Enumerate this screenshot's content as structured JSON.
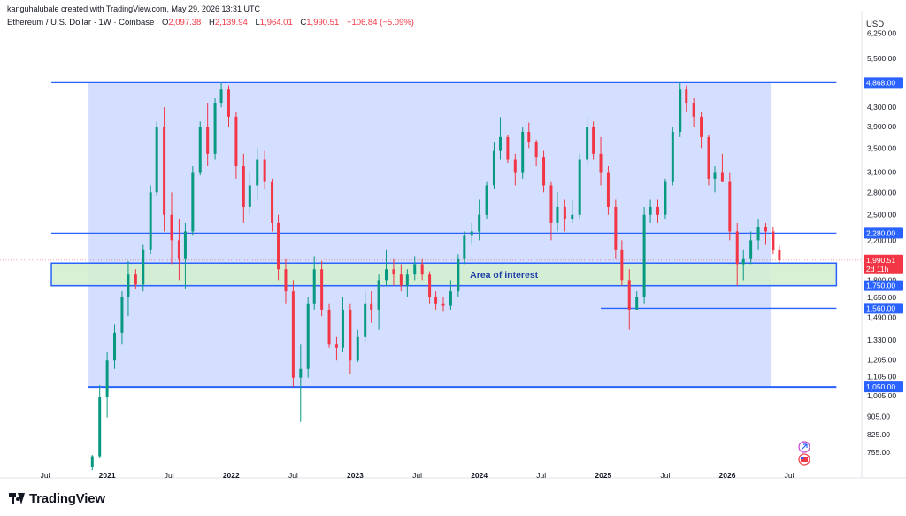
{
  "header": {
    "author_line": "kanguhalubale created with TradingView.com, May 29, 2026 13:31 UTC",
    "symbol": "Ethereum / U.S. Dollar · 1W · Coinbase",
    "open_label": "O",
    "open": "2,097.38",
    "high_label": "H",
    "high": "2,139.94",
    "low_label": "L",
    "low": "1,964.01",
    "close_label": "C",
    "close": "1,990.51",
    "change": "−106.84 (−5.09%)",
    "currency": "USD"
  },
  "footer": {
    "brand": "TradingView"
  },
  "colors": {
    "up": "#089981",
    "down": "#f23645",
    "level_line": "#2962ff",
    "range_fill": "#cdd8ff",
    "interest_fill": "#d4f0d0",
    "label_bg": "#2962ff"
  },
  "chart_data": {
    "type": "candlestick",
    "scale": "log",
    "interval": "1W",
    "ylim": [
      700,
      7000
    ],
    "y_ticks": [
      {
        "v": 6250,
        "t": "6,250.00"
      },
      {
        "v": 5500,
        "t": "5,500.00"
      },
      {
        "v": 4300,
        "t": "4,300.00"
      },
      {
        "v": 3900,
        "t": "3,900.00"
      },
      {
        "v": 3500,
        "t": "3,500.00"
      },
      {
        "v": 3100,
        "t": "3,100.00"
      },
      {
        "v": 2800,
        "t": "2,800.00"
      },
      {
        "v": 2500,
        "t": "2,500.00"
      },
      {
        "v": 2200,
        "t": "2,200.00"
      },
      {
        "v": 1800,
        "t": "1,800.00"
      },
      {
        "v": 1650,
        "t": "1,650.00"
      },
      {
        "v": 1490,
        "t": "1,490.00"
      },
      {
        "v": 1330,
        "t": "1,330.00"
      },
      {
        "v": 1205,
        "t": "1,205.00"
      },
      {
        "v": 1105,
        "t": "1,105.00"
      },
      {
        "v": 1005,
        "t": "1,005.00"
      },
      {
        "v": 905,
        "t": "905.00"
      },
      {
        "v": 825,
        "t": "825.00"
      },
      {
        "v": 755,
        "t": "755.00"
      }
    ],
    "x_ticks": [
      {
        "t": 2020.5,
        "label": "Jul",
        "bold": false
      },
      {
        "t": 2021.0,
        "label": "2021",
        "bold": true
      },
      {
        "t": 2021.5,
        "label": "Jul",
        "bold": false
      },
      {
        "t": 2022.0,
        "label": "2022",
        "bold": true
      },
      {
        "t": 2022.5,
        "label": "Jul",
        "bold": false
      },
      {
        "t": 2023.0,
        "label": "2023",
        "bold": true
      },
      {
        "t": 2023.5,
        "label": "Jul",
        "bold": false
      },
      {
        "t": 2024.0,
        "label": "2024",
        "bold": true
      },
      {
        "t": 2024.5,
        "label": "Jul",
        "bold": false
      },
      {
        "t": 2025.0,
        "label": "2025",
        "bold": true
      },
      {
        "t": 2025.5,
        "label": "Jul",
        "bold": false
      },
      {
        "t": 2026.0,
        "label": "2026",
        "bold": true
      },
      {
        "t": 2026.5,
        "label": "Jul",
        "bold": false
      }
    ],
    "levels": [
      {
        "price": 4868,
        "label": "4,868.00",
        "t_start": 2020.55,
        "t_end": 2026.88
      },
      {
        "price": 2280,
        "label": "2,280.00",
        "t_start": 2020.55,
        "t_end": 2026.88
      },
      {
        "price": 1750,
        "label": "1,750.00",
        "t_start": 2020.55,
        "t_end": 2026.88
      },
      {
        "price": 1560,
        "label": "1,560.00",
        "t_start": 2024.98,
        "t_end": 2026.88
      },
      {
        "price": 1050,
        "label": "1,050.00",
        "t_start": 2020.85,
        "t_end": 2026.88
      }
    ],
    "current_price": {
      "price": 1990.51,
      "label": "1,990.51",
      "countdown": "2d 11h"
    },
    "range_box": {
      "t_start": 2020.85,
      "t_end": 2026.35,
      "low": 1050,
      "high": 4868
    },
    "interest_zone": {
      "t_start": 2020.55,
      "t_end": 2026.88,
      "low": 1750,
      "high": 1960,
      "label": "Area of interest"
    },
    "candles": [
      {
        "t": 2020.88,
        "o": 700,
        "h": 745,
        "l": 690,
        "c": 740
      },
      {
        "t": 2020.94,
        "o": 740,
        "h": 1060,
        "l": 735,
        "c": 1000
      },
      {
        "t": 2021.0,
        "o": 1000,
        "h": 1250,
        "l": 900,
        "c": 1200
      },
      {
        "t": 2021.06,
        "o": 1200,
        "h": 1440,
        "l": 1150,
        "c": 1380
      },
      {
        "t": 2021.12,
        "o": 1380,
        "h": 1700,
        "l": 1300,
        "c": 1650
      },
      {
        "t": 2021.17,
        "o": 1650,
        "h": 1980,
        "l": 1500,
        "c": 1850
      },
      {
        "t": 2021.23,
        "o": 1850,
        "h": 1900,
        "l": 1720,
        "c": 1760
      },
      {
        "t": 2021.29,
        "o": 1760,
        "h": 2150,
        "l": 1700,
        "c": 2100
      },
      {
        "t": 2021.35,
        "o": 2100,
        "h": 2900,
        "l": 2050,
        "c": 2800
      },
      {
        "t": 2021.4,
        "o": 2800,
        "h": 4000,
        "l": 2750,
        "c": 3900
      },
      {
        "t": 2021.46,
        "o": 3900,
        "h": 4300,
        "l": 2300,
        "c": 2500
      },
      {
        "t": 2021.52,
        "o": 2500,
        "h": 2800,
        "l": 1950,
        "c": 2200
      },
      {
        "t": 2021.58,
        "o": 2200,
        "h": 2450,
        "l": 1800,
        "c": 2000
      },
      {
        "t": 2021.63,
        "o": 2000,
        "h": 2400,
        "l": 1720,
        "c": 2300
      },
      {
        "t": 2021.69,
        "o": 2300,
        "h": 3200,
        "l": 2250,
        "c": 3100
      },
      {
        "t": 2021.75,
        "o": 3100,
        "h": 4000,
        "l": 3050,
        "c": 3900
      },
      {
        "t": 2021.81,
        "o": 3900,
        "h": 4400,
        "l": 3200,
        "c": 3400
      },
      {
        "t": 2021.87,
        "o": 3400,
        "h": 4500,
        "l": 3300,
        "c": 4400
      },
      {
        "t": 2021.92,
        "o": 4400,
        "h": 4870,
        "l": 4300,
        "c": 4700
      },
      {
        "t": 2021.98,
        "o": 4700,
        "h": 4800,
        "l": 3900,
        "c": 4100
      },
      {
        "t": 2022.04,
        "o": 4100,
        "h": 4200,
        "l": 3000,
        "c": 3200
      },
      {
        "t": 2022.1,
        "o": 3200,
        "h": 3400,
        "l": 2400,
        "c": 2600
      },
      {
        "t": 2022.15,
        "o": 2600,
        "h": 3100,
        "l": 2500,
        "c": 2900
      },
      {
        "t": 2022.21,
        "o": 2900,
        "h": 3500,
        "l": 2700,
        "c": 3300
      },
      {
        "t": 2022.27,
        "o": 3300,
        "h": 3450,
        "l": 2850,
        "c": 2950
      },
      {
        "t": 2022.33,
        "o": 2950,
        "h": 3000,
        "l": 2300,
        "c": 2400
      },
      {
        "t": 2022.38,
        "o": 2400,
        "h": 2500,
        "l": 1800,
        "c": 1900
      },
      {
        "t": 2022.44,
        "o": 1900,
        "h": 2000,
        "l": 1600,
        "c": 1700
      },
      {
        "t": 2022.5,
        "o": 1700,
        "h": 1800,
        "l": 1050,
        "c": 1100
      },
      {
        "t": 2022.56,
        "o": 1100,
        "h": 1300,
        "l": 880,
        "c": 1150
      },
      {
        "t": 2022.62,
        "o": 1150,
        "h": 1650,
        "l": 1100,
        "c": 1600
      },
      {
        "t": 2022.67,
        "o": 1600,
        "h": 2030,
        "l": 1550,
        "c": 1900
      },
      {
        "t": 2022.73,
        "o": 1900,
        "h": 1980,
        "l": 1500,
        "c": 1550
      },
      {
        "t": 2022.79,
        "o": 1550,
        "h": 1600,
        "l": 1280,
        "c": 1300
      },
      {
        "t": 2022.85,
        "o": 1300,
        "h": 1350,
        "l": 1200,
        "c": 1280
      },
      {
        "t": 2022.9,
        "o": 1280,
        "h": 1650,
        "l": 1250,
        "c": 1550
      },
      {
        "t": 2022.96,
        "o": 1550,
        "h": 1600,
        "l": 1120,
        "c": 1200
      },
      {
        "t": 2023.02,
        "o": 1200,
        "h": 1400,
        "l": 1190,
        "c": 1350
      },
      {
        "t": 2023.08,
        "o": 1350,
        "h": 1700,
        "l": 1320,
        "c": 1600
      },
      {
        "t": 2023.13,
        "o": 1600,
        "h": 1700,
        "l": 1450,
        "c": 1550
      },
      {
        "t": 2023.19,
        "o": 1550,
        "h": 1850,
        "l": 1400,
        "c": 1800
      },
      {
        "t": 2023.25,
        "o": 1800,
        "h": 2100,
        "l": 1750,
        "c": 1900
      },
      {
        "t": 2023.31,
        "o": 1900,
        "h": 2000,
        "l": 1750,
        "c": 1850
      },
      {
        "t": 2023.37,
        "o": 1850,
        "h": 1950,
        "l": 1700,
        "c": 1750
      },
      {
        "t": 2023.42,
        "o": 1750,
        "h": 1900,
        "l": 1650,
        "c": 1850
      },
      {
        "t": 2023.48,
        "o": 1850,
        "h": 2030,
        "l": 1800,
        "c": 1950
      },
      {
        "t": 2023.54,
        "o": 1950,
        "h": 2000,
        "l": 1800,
        "c": 1850
      },
      {
        "t": 2023.6,
        "o": 1850,
        "h": 1880,
        "l": 1600,
        "c": 1650
      },
      {
        "t": 2023.65,
        "o": 1650,
        "h": 1700,
        "l": 1550,
        "c": 1600
      },
      {
        "t": 2023.71,
        "o": 1600,
        "h": 1650,
        "l": 1540,
        "c": 1580
      },
      {
        "t": 2023.77,
        "o": 1580,
        "h": 1800,
        "l": 1550,
        "c": 1700
      },
      {
        "t": 2023.83,
        "o": 1700,
        "h": 2050,
        "l": 1650,
        "c": 2000
      },
      {
        "t": 2023.88,
        "o": 2000,
        "h": 2300,
        "l": 1950,
        "c": 2250
      },
      {
        "t": 2023.94,
        "o": 2250,
        "h": 2400,
        "l": 2150,
        "c": 2300
      },
      {
        "t": 2024.0,
        "o": 2300,
        "h": 2700,
        "l": 2200,
        "c": 2500
      },
      {
        "t": 2024.06,
        "o": 2500,
        "h": 2950,
        "l": 2450,
        "c": 2900
      },
      {
        "t": 2024.12,
        "o": 2900,
        "h": 3600,
        "l": 2850,
        "c": 3450
      },
      {
        "t": 2024.17,
        "o": 3450,
        "h": 4090,
        "l": 3300,
        "c": 3700
      },
      {
        "t": 2024.23,
        "o": 3700,
        "h": 3750,
        "l": 3250,
        "c": 3300
      },
      {
        "t": 2024.29,
        "o": 3300,
        "h": 3400,
        "l": 2900,
        "c": 3100
      },
      {
        "t": 2024.35,
        "o": 3100,
        "h": 3900,
        "l": 3000,
        "c": 3800
      },
      {
        "t": 2024.4,
        "o": 3800,
        "h": 3980,
        "l": 3500,
        "c": 3600
      },
      {
        "t": 2024.46,
        "o": 3600,
        "h": 3650,
        "l": 3200,
        "c": 3350
      },
      {
        "t": 2024.52,
        "o": 3350,
        "h": 3450,
        "l": 2800,
        "c": 2900
      },
      {
        "t": 2024.58,
        "o": 2900,
        "h": 2950,
        "l": 2200,
        "c": 2400
      },
      {
        "t": 2024.63,
        "o": 2400,
        "h": 2800,
        "l": 2300,
        "c": 2600
      },
      {
        "t": 2024.69,
        "o": 2600,
        "h": 2700,
        "l": 2300,
        "c": 2450
      },
      {
        "t": 2024.75,
        "o": 2450,
        "h": 2700,
        "l": 2400,
        "c": 2500
      },
      {
        "t": 2024.81,
        "o": 2500,
        "h": 3400,
        "l": 2450,
        "c": 3300
      },
      {
        "t": 2024.87,
        "o": 3300,
        "h": 4100,
        "l": 3200,
        "c": 3900
      },
      {
        "t": 2024.92,
        "o": 3900,
        "h": 4000,
        "l": 3300,
        "c": 3400
      },
      {
        "t": 2024.98,
        "o": 3400,
        "h": 3700,
        "l": 2900,
        "c": 3100
      },
      {
        "t": 2025.04,
        "o": 3100,
        "h": 3200,
        "l": 2500,
        "c": 2600
      },
      {
        "t": 2025.1,
        "o": 2600,
        "h": 2700,
        "l": 2000,
        "c": 2100
      },
      {
        "t": 2025.15,
        "o": 2100,
        "h": 2200,
        "l": 1750,
        "c": 1800
      },
      {
        "t": 2025.21,
        "o": 1800,
        "h": 1900,
        "l": 1400,
        "c": 1550
      },
      {
        "t": 2025.27,
        "o": 1550,
        "h": 1700,
        "l": 1550,
        "c": 1650
      },
      {
        "t": 2025.33,
        "o": 1650,
        "h": 2600,
        "l": 1600,
        "c": 2500
      },
      {
        "t": 2025.38,
        "o": 2500,
        "h": 2700,
        "l": 2400,
        "c": 2600
      },
      {
        "t": 2025.44,
        "o": 2600,
        "h": 2700,
        "l": 2400,
        "c": 2500
      },
      {
        "t": 2025.5,
        "o": 2500,
        "h": 3000,
        "l": 2450,
        "c": 2950
      },
      {
        "t": 2025.56,
        "o": 2950,
        "h": 3900,
        "l": 2900,
        "c": 3800
      },
      {
        "t": 2025.62,
        "o": 3800,
        "h": 4868,
        "l": 3700,
        "c": 4700
      },
      {
        "t": 2025.67,
        "o": 4700,
        "h": 4800,
        "l": 4200,
        "c": 4400
      },
      {
        "t": 2025.73,
        "o": 4400,
        "h": 4500,
        "l": 3900,
        "c": 4100
      },
      {
        "t": 2025.79,
        "o": 4100,
        "h": 4200,
        "l": 3500,
        "c": 3700
      },
      {
        "t": 2025.85,
        "o": 3700,
        "h": 3750,
        "l": 2900,
        "c": 3000
      },
      {
        "t": 2025.9,
        "o": 3000,
        "h": 3200,
        "l": 2800,
        "c": 3100
      },
      {
        "t": 2025.96,
        "o": 3100,
        "h": 3400,
        "l": 2950,
        "c": 2950
      },
      {
        "t": 2026.02,
        "o": 2950,
        "h": 3100,
        "l": 2200,
        "c": 2300
      },
      {
        "t": 2026.08,
        "o": 2300,
        "h": 2400,
        "l": 1750,
        "c": 1950
      },
      {
        "t": 2026.13,
        "o": 1950,
        "h": 2100,
        "l": 1800,
        "c": 2000
      },
      {
        "t": 2026.19,
        "o": 2000,
        "h": 2300,
        "l": 1950,
        "c": 2200
      },
      {
        "t": 2026.25,
        "o": 2200,
        "h": 2450,
        "l": 2100,
        "c": 2350
      },
      {
        "t": 2026.31,
        "o": 2350,
        "h": 2400,
        "l": 2150,
        "c": 2300
      },
      {
        "t": 2026.37,
        "o": 2300,
        "h": 2350,
        "l": 2050,
        "c": 2097
      },
      {
        "t": 2026.42,
        "o": 2097.38,
        "h": 2139.94,
        "l": 1964.01,
        "c": 1990.51
      }
    ]
  }
}
